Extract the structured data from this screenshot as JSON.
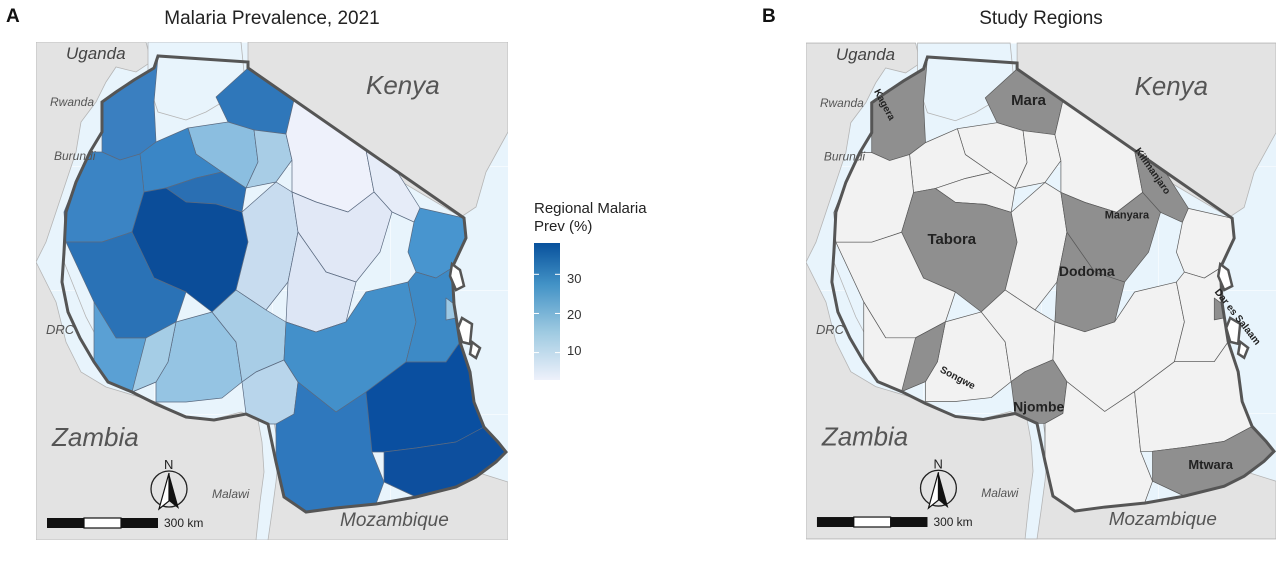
{
  "panels": {
    "a": {
      "letter": "A",
      "title": "Malaria Prevalence, 2021"
    },
    "b": {
      "letter": "B",
      "title": "Study Regions"
    }
  },
  "map_labels": {
    "uganda": "Uganda",
    "kenya": "Kenya",
    "rwanda": "Rwanda",
    "burundi": "Burundi",
    "drc": "DRC",
    "zambia": "Zambia",
    "malawi": "Malawi",
    "mozambique": "Mozambique"
  },
  "study_regions": {
    "kagera": "Kagera",
    "mara": "Mara",
    "kilimanjaro": "Kilimanjaro",
    "manyara": "Manyara",
    "tabora": "Tabora",
    "dodoma": "Dodoma",
    "dar_es_salaam": "Dar es Salaam",
    "songwe": "Songwe",
    "njombe": "Njombe",
    "mtwara": "Mtwara"
  },
  "legend": {
    "title_line1": "Regional Malaria",
    "title_line2": "Prev (%)",
    "ticks": [
      "30",
      "20",
      "10"
    ],
    "min": 3,
    "max": 38
  },
  "compass": {
    "north_label": "N"
  },
  "scalebar": {
    "label": "300 km"
  },
  "colors": {
    "water": "#e8f4fc",
    "neighbor_land": "#e4e4e4",
    "border": "#555555",
    "study_region": "#8f8f8f",
    "other_region": "#f2f2f2",
    "scale_low": "#eef1fb",
    "scale_high": "#08519c"
  }
}
